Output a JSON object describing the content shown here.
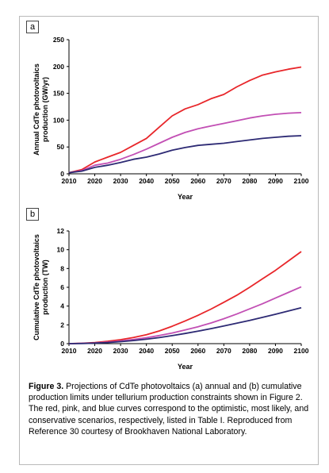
{
  "panels": [
    {
      "label": "a"
    },
    {
      "label": "b"
    }
  ],
  "caption": {
    "label": "Figure 3.",
    "text": " Projections of CdTe photovoltaics (a) annual and (b) cumulative production limits under tellurium production constraints shown in Figure 2. The red, pink, and blue curves correspond to the optimistic, most likely, and conservative scenarios, respectively, listed in Table I. Reproduced from Reference 30 courtesy of Brookhaven National Laboratory."
  },
  "colors": {
    "red": "#e8262a",
    "pink": "#c24fb4",
    "blue": "#2d2a74"
  },
  "chart_data": [
    {
      "type": "line",
      "xlabel": "Year",
      "ylabel": "Annual CdTe photovoltaics production (GW/yr)",
      "xlim": [
        2010,
        2100
      ],
      "ylim": [
        0,
        250
      ],
      "xticks": [
        2010,
        2020,
        2030,
        2040,
        2050,
        2060,
        2070,
        2080,
        2090,
        2100
      ],
      "yticks": [
        0,
        50,
        100,
        150,
        200,
        250
      ],
      "grid": false,
      "x": [
        2010,
        2015,
        2020,
        2025,
        2030,
        2035,
        2040,
        2045,
        2050,
        2055,
        2060,
        2065,
        2070,
        2075,
        2080,
        2085,
        2090,
        2095,
        2100
      ],
      "series": [
        {
          "color": "#e8262a",
          "values": [
            2,
            8,
            22,
            31,
            40,
            53,
            66,
            87,
            108,
            121,
            129,
            140,
            148,
            162,
            174,
            184,
            190,
            195,
            199
          ]
        },
        {
          "color": "#c24fb4",
          "values": [
            2,
            6,
            16,
            20,
            27,
            36,
            46,
            57,
            68,
            77,
            84,
            89,
            94,
            99,
            104,
            108,
            111,
            113,
            114
          ]
        },
        {
          "color": "#2d2a74",
          "values": [
            2,
            5,
            12,
            16,
            21,
            27,
            31,
            37,
            44,
            49,
            53,
            55,
            57,
            60,
            63,
            66,
            68,
            70,
            71
          ]
        }
      ]
    },
    {
      "type": "line",
      "xlabel": "Year",
      "ylabel": "Cumulative CdTe photovoltaics production (TW)",
      "xlim": [
        2010,
        2100
      ],
      "ylim": [
        0,
        12
      ],
      "xticks": [
        2010,
        2020,
        2030,
        2040,
        2050,
        2060,
        2070,
        2080,
        2090,
        2100
      ],
      "yticks": [
        0,
        2,
        4,
        6,
        8,
        10,
        12
      ],
      "grid": false,
      "x": [
        2010,
        2015,
        2020,
        2025,
        2030,
        2035,
        2040,
        2045,
        2050,
        2055,
        2060,
        2065,
        2070,
        2075,
        2080,
        2085,
        2090,
        2095,
        2100
      ],
      "series": [
        {
          "color": "#e8262a",
          "values": [
            0,
            0.04,
            0.12,
            0.25,
            0.42,
            0.66,
            0.95,
            1.35,
            1.85,
            2.42,
            3.02,
            3.68,
            4.4,
            5.15,
            6.0,
            6.9,
            7.8,
            8.8,
            9.8
          ]
        },
        {
          "color": "#c24fb4",
          "values": [
            0,
            0.03,
            0.08,
            0.16,
            0.28,
            0.44,
            0.63,
            0.86,
            1.13,
            1.45,
            1.8,
            2.2,
            2.65,
            3.15,
            3.7,
            4.25,
            4.85,
            5.45,
            6.05
          ]
        },
        {
          "color": "#2d2a74",
          "values": [
            0,
            0.02,
            0.06,
            0.12,
            0.21,
            0.33,
            0.47,
            0.64,
            0.85,
            1.08,
            1.33,
            1.6,
            1.88,
            2.17,
            2.47,
            2.8,
            3.13,
            3.47,
            3.82
          ]
        }
      ]
    }
  ]
}
